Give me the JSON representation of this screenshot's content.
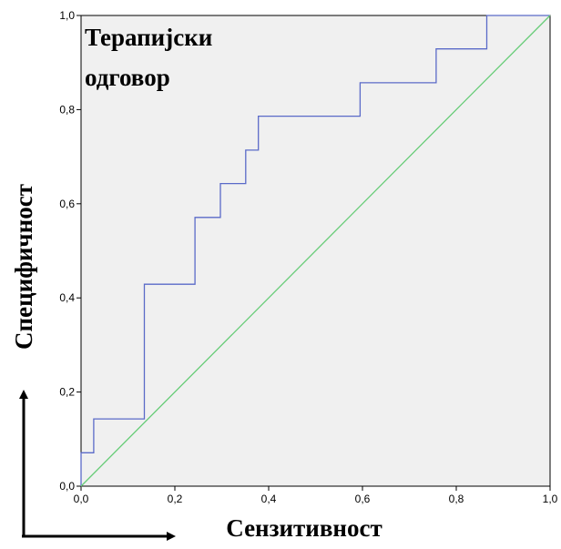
{
  "chart_data": {
    "type": "line",
    "title": "",
    "annotation_lines": [
      "Терапијски",
      "одговор"
    ],
    "xlabel": "Сензитивност",
    "ylabel": "Специфичност",
    "xlim": [
      0,
      1
    ],
    "ylim": [
      0,
      1
    ],
    "x_ticks": [
      "0,0",
      "0,2",
      "0,4",
      "0,6",
      "0,8",
      "1,0"
    ],
    "y_ticks": [
      "0,0",
      "0,2",
      "0,4",
      "0,6",
      "0,8",
      "1,0"
    ],
    "grid": false,
    "legend": "none",
    "background_color": "#f0f0f0",
    "series": [
      {
        "style": "step",
        "color": "#5a6ac8",
        "points": [
          [
            0.0,
            0.0
          ],
          [
            0.0,
            0.071
          ],
          [
            0.027,
            0.071
          ],
          [
            0.027,
            0.143
          ],
          [
            0.135,
            0.143
          ],
          [
            0.135,
            0.429
          ],
          [
            0.243,
            0.429
          ],
          [
            0.243,
            0.571
          ],
          [
            0.297,
            0.571
          ],
          [
            0.297,
            0.643
          ],
          [
            0.351,
            0.643
          ],
          [
            0.351,
            0.714
          ],
          [
            0.378,
            0.714
          ],
          [
            0.378,
            0.786
          ],
          [
            0.595,
            0.786
          ],
          [
            0.595,
            0.857
          ],
          [
            0.757,
            0.857
          ],
          [
            0.757,
            0.929
          ],
          [
            0.865,
            0.929
          ],
          [
            0.865,
            1.0
          ],
          [
            1.0,
            1.0
          ]
        ]
      },
      {
        "style": "reference",
        "color": "#66cc77",
        "points": [
          [
            0,
            0
          ],
          [
            1,
            1
          ]
        ]
      }
    ]
  }
}
